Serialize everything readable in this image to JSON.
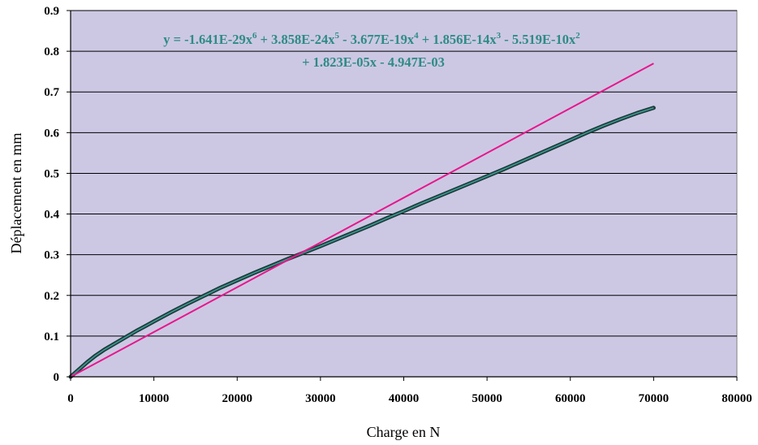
{
  "chart_data": {
    "type": "scatter",
    "xlabel": "Charge en N",
    "ylabel": "Déplacement en mm",
    "xlim": [
      0,
      80000
    ],
    "ylim": [
      0,
      0.9
    ],
    "x_ticks": [
      "0",
      "10000",
      "20000",
      "30000",
      "40000",
      "50000",
      "60000",
      "70000",
      "80000"
    ],
    "y_ticks": [
      "0",
      "0.1",
      "0.2",
      "0.3",
      "0.4",
      "0.5",
      "0.6",
      "0.7",
      "0.8",
      "0.9"
    ],
    "grid": true,
    "plot_background": "#ccc8e4",
    "trendline_equation": {
      "line1_parts": [
        "y = -1.641E-29x",
        "6",
        " + 3.858E-24x",
        "5",
        " - 3.677E-19x",
        "4",
        " + 1.856E-14x",
        "3",
        " - 5.519E-10x",
        "2"
      ],
      "line2": "+ 1.823E-05x - 4.947E-03"
    },
    "series": [
      {
        "type": "scatter",
        "color": "#1f3a3a",
        "trend_color": "#3b9a92",
        "x": [
          0,
          1000,
          2000,
          3000,
          4000,
          5000,
          6000,
          7000,
          8000,
          9000,
          10000,
          12000,
          14000,
          16000,
          18000,
          20000,
          22000,
          24000,
          26000,
          28000,
          30000,
          32000,
          34000,
          36000,
          38000,
          40000,
          42000,
          44000,
          46000,
          48000,
          50000,
          52000,
          54000,
          56000,
          58000,
          60000,
          62000,
          64000,
          66000,
          68000,
          70000
        ],
        "y": [
          0,
          0.018,
          0.036,
          0.052,
          0.066,
          0.078,
          0.09,
          0.102,
          0.114,
          0.125,
          0.136,
          0.158,
          0.179,
          0.199,
          0.219,
          0.237,
          0.255,
          0.272,
          0.289,
          0.305,
          0.321,
          0.338,
          0.355,
          0.372,
          0.39,
          0.407,
          0.425,
          0.442,
          0.459,
          0.476,
          0.493,
          0.51,
          0.528,
          0.546,
          0.564,
          0.582,
          0.6,
          0.617,
          0.633,
          0.648,
          0.661
        ]
      },
      {
        "type": "line",
        "color": "#e8168c",
        "x": [
          0,
          70000
        ],
        "y": [
          0,
          0.77
        ]
      }
    ]
  }
}
